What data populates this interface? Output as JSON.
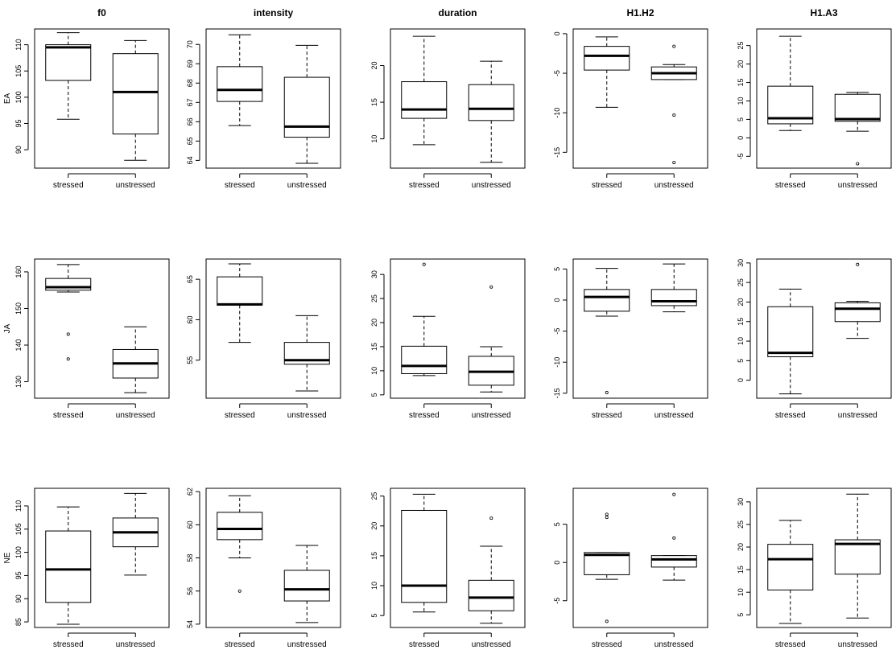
{
  "chart_data": {
    "type": "boxplot",
    "columns": [
      "f0",
      "intensity",
      "duration",
      "H1.H2",
      "H1.A3"
    ],
    "rows": [
      "EA",
      "JA",
      "NE"
    ],
    "categories": [
      "stressed",
      "unstressed"
    ],
    "panels": [
      {
        "row": "EA",
        "column": "f0",
        "ylim": [
          86.5,
          113
        ],
        "yticks": [
          90,
          95,
          100,
          105,
          110
        ],
        "boxes": [
          {
            "category": "stressed",
            "lower_whisker": 95.8,
            "q1": 103.2,
            "median": 109.5,
            "q3": 110.0,
            "upper_whisker": 112.3,
            "outliers": []
          },
          {
            "category": "unstressed",
            "lower_whisker": 88.0,
            "q1": 93.0,
            "median": 101.0,
            "q3": 108.3,
            "upper_whisker": 110.8,
            "outliers": []
          }
        ]
      },
      {
        "row": "EA",
        "column": "intensity",
        "ylim": [
          63.6,
          70.8
        ],
        "yticks": [
          64,
          65,
          66,
          67,
          68,
          69,
          70
        ],
        "boxes": [
          {
            "category": "stressed",
            "lower_whisker": 65.8,
            "q1": 67.05,
            "median": 67.65,
            "q3": 68.85,
            "upper_whisker": 70.5,
            "outliers": []
          },
          {
            "category": "unstressed",
            "lower_whisker": 63.85,
            "q1": 65.2,
            "median": 65.75,
            "q3": 68.3,
            "upper_whisker": 69.95,
            "outliers": []
          }
        ]
      },
      {
        "row": "EA",
        "column": "duration",
        "ylim": [
          6,
          25
        ],
        "yticks": [
          10,
          15,
          20
        ],
        "boxes": [
          {
            "category": "stressed",
            "lower_whisker": 9.2,
            "q1": 12.8,
            "median": 14.0,
            "q3": 17.8,
            "upper_whisker": 24.0,
            "outliers": []
          },
          {
            "category": "unstressed",
            "lower_whisker": 6.8,
            "q1": 12.5,
            "median": 14.1,
            "q3": 17.4,
            "upper_whisker": 20.6,
            "outliers": []
          }
        ]
      },
      {
        "row": "EA",
        "column": "H1.H2",
        "ylim": [
          -17,
          0.6
        ],
        "yticks": [
          -15,
          -10,
          -5,
          0
        ],
        "boxes": [
          {
            "category": "stressed",
            "lower_whisker": -9.3,
            "q1": -4.6,
            "median": -2.8,
            "q3": -1.6,
            "upper_whisker": -0.4,
            "outliers": []
          },
          {
            "category": "unstressed",
            "lower_whisker": -5.8,
            "q1": -5.8,
            "median": -5.0,
            "q3": -4.2,
            "upper_whisker": -3.9,
            "outliers": [
              -1.6,
              -10.3,
              -16.3
            ]
          }
        ]
      },
      {
        "row": "EA",
        "column": "H1.A3",
        "ylim": [
          -8.2,
          29.5
        ],
        "yticks": [
          -5,
          0,
          5,
          10,
          15,
          20,
          25
        ],
        "boxes": [
          {
            "category": "stressed",
            "lower_whisker": 2.0,
            "q1": 3.8,
            "median": 5.3,
            "q3": 14.0,
            "upper_whisker": 27.5,
            "outliers": []
          },
          {
            "category": "unstressed",
            "lower_whisker": 1.8,
            "q1": 4.5,
            "median": 5.1,
            "q3": 11.8,
            "upper_whisker": 12.3,
            "outliers": [
              -7.0
            ]
          }
        ]
      },
      {
        "row": "JA",
        "column": "f0",
        "ylim": [
          125.5,
          163.5
        ],
        "yticks": [
          130,
          140,
          150,
          160
        ],
        "boxes": [
          {
            "category": "stressed",
            "lower_whisker": 154.5,
            "q1": 155.0,
            "median": 155.8,
            "q3": 158.2,
            "upper_whisker": 162.0,
            "outliers": [
              143.0,
              136.2
            ]
          },
          {
            "category": "unstressed",
            "lower_whisker": 127.0,
            "q1": 131.0,
            "median": 135.0,
            "q3": 138.8,
            "upper_whisker": 145.0,
            "outliers": []
          }
        ]
      },
      {
        "row": "JA",
        "column": "intensity",
        "ylim": [
          50.3,
          67.5
        ],
        "yticks": [
          55,
          60,
          65
        ],
        "boxes": [
          {
            "category": "stressed",
            "lower_whisker": 57.2,
            "q1": 61.8,
            "median": 61.9,
            "q3": 65.3,
            "upper_whisker": 66.9,
            "outliers": []
          },
          {
            "category": "unstressed",
            "lower_whisker": 51.2,
            "q1": 54.5,
            "median": 55.0,
            "q3": 57.2,
            "upper_whisker": 60.5,
            "outliers": []
          }
        ]
      },
      {
        "row": "JA",
        "column": "duration",
        "ylim": [
          4.3,
          33.2
        ],
        "yticks": [
          5,
          10,
          15,
          20,
          25,
          30
        ],
        "boxes": [
          {
            "category": "stressed",
            "lower_whisker": 9.0,
            "q1": 9.4,
            "median": 11.0,
            "q3": 15.1,
            "upper_whisker": 21.3,
            "outliers": [
              32.1
            ]
          },
          {
            "category": "unstressed",
            "lower_whisker": 5.6,
            "q1": 7.0,
            "median": 9.8,
            "q3": 13.0,
            "upper_whisker": 15.0,
            "outliers": [
              27.4
            ]
          }
        ]
      },
      {
        "row": "JA",
        "column": "H1.H2",
        "ylim": [
          -15.8,
          6.6
        ],
        "yticks": [
          -15,
          -10,
          -5,
          0,
          5
        ],
        "boxes": [
          {
            "category": "stressed",
            "lower_whisker": -2.6,
            "q1": -1.8,
            "median": 0.5,
            "q3": 1.7,
            "upper_whisker": 5.1,
            "outliers": [
              -14.9
            ]
          },
          {
            "category": "unstressed",
            "lower_whisker": -1.9,
            "q1": -0.9,
            "median": -0.2,
            "q3": 1.7,
            "upper_whisker": 5.8,
            "outliers": []
          }
        ]
      },
      {
        "row": "JA",
        "column": "H1.A3",
        "ylim": [
          -4.6,
          31.0
        ],
        "yticks": [
          0,
          5,
          10,
          15,
          20,
          25,
          30
        ],
        "boxes": [
          {
            "category": "stressed",
            "lower_whisker": -3.5,
            "q1": 6.0,
            "median": 7.0,
            "q3": 18.8,
            "upper_whisker": 23.3,
            "outliers": []
          },
          {
            "category": "unstressed",
            "lower_whisker": 10.7,
            "q1": 15.0,
            "median": 18.3,
            "q3": 19.8,
            "upper_whisker": 20.2,
            "outliers": [
              29.6
            ]
          }
        ]
      },
      {
        "row": "NE",
        "column": "f0",
        "ylim": [
          83.8,
          113.8
        ],
        "yticks": [
          85,
          90,
          95,
          100,
          105,
          110
        ],
        "boxes": [
          {
            "category": "stressed",
            "lower_whisker": 84.5,
            "q1": 89.2,
            "median": 96.3,
            "q3": 104.6,
            "upper_whisker": 109.8,
            "outliers": []
          },
          {
            "category": "unstressed",
            "lower_whisker": 95.1,
            "q1": 101.2,
            "median": 104.3,
            "q3": 107.4,
            "upper_whisker": 112.7,
            "outliers": []
          }
        ]
      },
      {
        "row": "NE",
        "column": "intensity",
        "ylim": [
          53.8,
          62.2
        ],
        "yticks": [
          54,
          56,
          58,
          60,
          62
        ],
        "boxes": [
          {
            "category": "stressed",
            "lower_whisker": 58.0,
            "q1": 59.1,
            "median": 59.75,
            "q3": 60.75,
            "upper_whisker": 61.75,
            "outliers": [
              56.0
            ]
          },
          {
            "category": "unstressed",
            "lower_whisker": 54.1,
            "q1": 55.4,
            "median": 56.1,
            "q3": 57.25,
            "upper_whisker": 58.75,
            "outliers": []
          }
        ]
      },
      {
        "row": "NE",
        "column": "duration",
        "ylim": [
          3.0,
          26.3
        ],
        "yticks": [
          5,
          10,
          15,
          20,
          25
        ],
        "boxes": [
          {
            "category": "stressed",
            "lower_whisker": 5.6,
            "q1": 7.2,
            "median": 10.0,
            "q3": 22.6,
            "upper_whisker": 25.3,
            "outliers": []
          },
          {
            "category": "unstressed",
            "lower_whisker": 3.7,
            "q1": 5.8,
            "median": 8.0,
            "q3": 10.9,
            "upper_whisker": 16.6,
            "outliers": [
              21.3
            ]
          }
        ]
      },
      {
        "row": "NE",
        "column": "H1.H2",
        "ylim": [
          -8.5,
          9.7
        ],
        "yticks": [
          -5,
          0,
          5
        ],
        "boxes": [
          {
            "category": "stressed",
            "lower_whisker": -2.2,
            "q1": -1.6,
            "median": 1.0,
            "q3": 1.3,
            "upper_whisker": 1.3,
            "outliers": [
              6.3,
              5.9,
              -7.7
            ]
          },
          {
            "category": "unstressed",
            "lower_whisker": -2.3,
            "q1": -0.6,
            "median": 0.4,
            "q3": 0.9,
            "upper_whisker": 0.9,
            "outliers": [
              8.9,
              3.2
            ]
          }
        ]
      },
      {
        "row": "NE",
        "column": "H1.A3",
        "ylim": [
          2.2,
          33.0
        ],
        "yticks": [
          5,
          10,
          15,
          20,
          25,
          30
        ],
        "boxes": [
          {
            "category": "stressed",
            "lower_whisker": 3.1,
            "q1": 10.5,
            "median": 17.3,
            "q3": 20.6,
            "upper_whisker": 25.9,
            "outliers": []
          },
          {
            "category": "unstressed",
            "lower_whisker": 4.3,
            "q1": 14.0,
            "median": 20.7,
            "q3": 21.6,
            "upper_whisker": 31.7,
            "outliers": []
          }
        ]
      }
    ]
  }
}
